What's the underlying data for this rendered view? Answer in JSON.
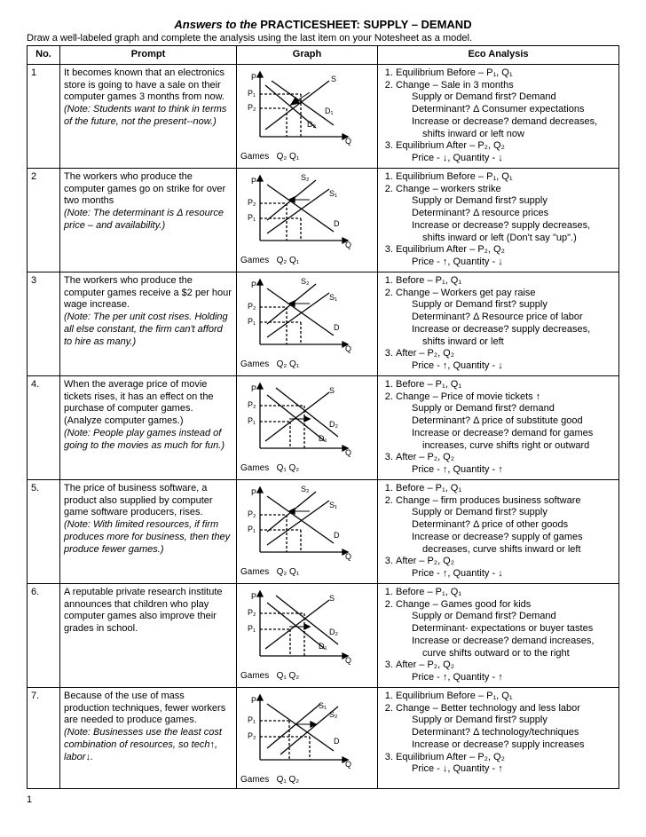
{
  "title_italic": "Answers to the",
  "title_bold": "PRACTICESHEET:  SUPPLY – DEMAND",
  "subtitle": "Draw a well-labeled graph and complete the analysis using the last item on your Notesheet as a model.",
  "headers": {
    "no": "No.",
    "prompt": "Prompt",
    "graph": "Graph",
    "eco": "Eco Analysis"
  },
  "page_number": "1",
  "rows": [
    {
      "no": "1",
      "prompt_main": "It becomes known that an electronics store is going to have a sale on their computer games 3 months from now.",
      "prompt_note": "(Note:  Students want to think in terms of the future, not the present--now.)",
      "graph_xlabel": "Games",
      "graph_q_labels": "Q₂   Q₁",
      "eco": {
        "l1": "Equilibrium Before – P₁, Q₁",
        "l2": "Change – Sale in 3 months",
        "l2a": "Supply or Demand first? Demand",
        "l2b": "Determinant?  Δ Consumer expectations",
        "l2c": "Increase or decrease? demand decreases,",
        "l2d": "shifts inward or left now",
        "l3": "Equilibrium After – P₂, Q₂",
        "l3a": "Price - ↓, Quantity - ↓"
      }
    },
    {
      "no": "2",
      "prompt_main": "The workers who produce the computer games go on strike for over two months",
      "prompt_note": "(Note: The determinant is Δ resource price – and availability.)",
      "graph_xlabel": "Games",
      "graph_q_labels": "Q₂      Q₁",
      "eco": {
        "l1": "Equilibrium Before – P₁, Q₁",
        "l2": "Change – workers strike",
        "l2a": "Supply or Demand first?  supply",
        "l2b": "Determinant? Δ resource prices",
        "l2c": "Increase or decrease?  supply decreases,",
        "l2d": "shifts inward or left  (Don't say \"up\".)",
        "l3": "Equilibrium After – P₂, Q₂",
        "l3a": "Price - ↑, Quantity - ↓"
      }
    },
    {
      "no": "3",
      "prompt_main": "The workers who produce the computer games receive a $2 per hour wage increase.",
      "prompt_note": "(Note:  The per unit cost rises.  Holding all else constant, the firm can't afford to hire as many.)",
      "graph_xlabel": "Games",
      "graph_q_labels": "Q₂      Q₁",
      "eco": {
        "l1": "Before – P₁, Q₁",
        "l2": "Change –  Workers get pay raise",
        "l2a": "Supply or Demand first?  supply",
        "l2b": "Determinant?  Δ Resource price of labor",
        "l2c": "Increase or decrease?  supply decreases,",
        "l2d": "shifts inward or left",
        "l3": "After – P₂, Q₂",
        "l3a": "Price - ↑, Quantity - ↓"
      }
    },
    {
      "no": "4.",
      "prompt_main": "When the average price of movie tickets rises, it has an effect on the purchase of computer games.  (Analyze computer games.)",
      "prompt_note": "(Note:  People play games instead of going to the movies as much for fun.)",
      "graph_xlabel": "Games",
      "graph_q_labels": "Q₁  Q₂",
      "eco": {
        "l1": "Before – P₁, Q₁",
        "l2": "Change – Price of movie tickets ↑",
        "l2a": "Supply or Demand first?  demand",
        "l2b": "Determinant?  Δ price of substitute good",
        "l2c": "Increase or decrease? demand for games",
        "l2d": "increases, curve shifts right or outward",
        "l3": "After – P₂, Q₂",
        "l3a": "Price - ↑, Quantity - ↑"
      }
    },
    {
      "no": "5.",
      "prompt_main": "The price of business software, a product also supplied by computer game software producers, rises.",
      "prompt_note": "(Note:  With limited resources, if firm produces more for business, then they produce fewer games.)",
      "graph_xlabel": "Games",
      "graph_q_labels": "Q₂      Q₁",
      "eco": {
        "l1": "Before – P₁, Q₁",
        "l2": "Change – firm produces business software",
        "l2a": "Supply or Demand first? supply",
        "l2b": "Determinant?  Δ price of other goods",
        "l2c": "Increase or decrease? supply of games",
        "l2d": "decreases, curve shifts inward or left",
        "l3": "After – P₂, Q₂",
        "l3a": "Price - ↑, Quantity - ↓"
      }
    },
    {
      "no": "6.",
      "prompt_main": "A reputable private research institute announces that children who play computer games also improve their grades in school.",
      "prompt_note": "",
      "graph_xlabel": "Games",
      "graph_q_labels": "Q₁  Q₂",
      "eco": {
        "l1": "Before – P₁, Q₁",
        "l2": "Change –  Games good for kids",
        "l2a": "Supply or Demand first?  Demand",
        "l2b": "Determinant- expectations or buyer tastes",
        "l2c": "Increase or decrease? demand increases,",
        "l2d": "curve shifts outward or to the right",
        "l3": "After – P₂, Q₂",
        "l3a": "Price - ↑, Quantity - ↑"
      }
    },
    {
      "no": "7.",
      "prompt_main": "Because of the use of mass production techniques, fewer workers are needed to produce games.",
      "prompt_note": "(Note: Businesses use the least cost combination of resources, so tech↑, labor↓.",
      "graph_xlabel": "Games",
      "graph_q_labels": "Q₁   Q₂",
      "eco": {
        "l1": "Equilibrium Before – P₁, Q₁",
        "l2": "Change – Better technology and less labor",
        "l2a": "Supply or Demand first?  supply",
        "l2b": "Determinant? Δ technology/techniques",
        "l2c": "Increase or decrease? supply increases",
        "l2d": "",
        "l3": "Equilibrium After – P₂, Q₂",
        "l3a": "Price -  ↓, Quantity - ↑"
      }
    }
  ],
  "graph_style": {
    "width": 135,
    "height": 95,
    "stroke": "#000000",
    "stroke_width": 1.3,
    "dash": "3,2",
    "font_size": 9
  }
}
